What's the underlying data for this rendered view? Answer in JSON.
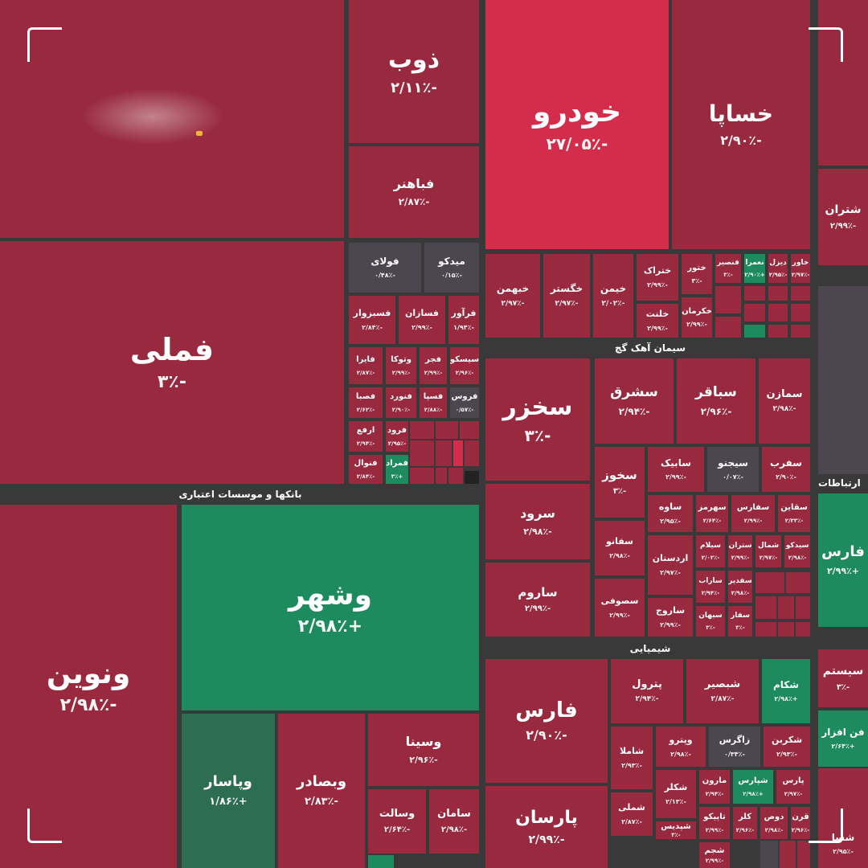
{
  "colors": {
    "background": "#393939",
    "negative": "#98293f",
    "strong_negative": "#d32d4b",
    "positive": "#1d8b5d",
    "dark_positive": "#2d6d52",
    "neutral": "#4c464e"
  },
  "sectors": {
    "banks": "بانکها و موسسات اعتباری",
    "cement": "سیمان آهک گچ",
    "chemical": "شیمیایی",
    "telecom": "ارتباطات"
  },
  "tiles": [
    {
      "name": "ذوب",
      "percent": "-۲/۱۱٪",
      "color": "negative"
    },
    {
      "name": "فباهنر",
      "percent": "-۲/۸۷٪",
      "color": "negative"
    },
    {
      "name": "خودرو",
      "percent": "-۲۷/۰۵٪",
      "color": "strong_negative"
    },
    {
      "name": "خساپا",
      "percent": "-۲/۹۰٪",
      "color": "negative"
    },
    {
      "name": "فملی",
      "percent": "-۳٪",
      "color": "negative"
    },
    {
      "name": "ونوین",
      "percent": "-۲/۹۸٪",
      "color": "negative"
    },
    {
      "name": "وشهر",
      "percent": "+۲/۹۸٪",
      "color": "positive"
    },
    {
      "name": "وپاسار",
      "percent": "+۱/۸۶٪",
      "color": "dark_positive"
    },
    {
      "name": "وبصادر",
      "percent": "-۲/۸۳٪",
      "color": "negative"
    },
    {
      "name": "وسینا",
      "percent": "-۲/۹۶٪",
      "color": "negative"
    },
    {
      "name": "وسالت",
      "percent": "-۲/۶۴٪",
      "color": "negative"
    },
    {
      "name": "سامان",
      "percent": "-۲/۹۸٪",
      "color": "negative"
    },
    {
      "name": "فولای",
      "percent": "-۰/۴۸٪",
      "color": "neutral"
    },
    {
      "name": "میدکو",
      "percent": "-۰/۱۵٪",
      "color": "neutral"
    },
    {
      "name": "فسبزوار",
      "percent": "-۲/۸۴٪",
      "color": "negative"
    },
    {
      "name": "فسازان",
      "percent": "-۲/۹۹٪",
      "color": "negative"
    },
    {
      "name": "فرآور",
      "percent": "-۱/۹۴٪",
      "color": "negative"
    },
    {
      "name": "فایرا",
      "percent": "-۲/۸۷٪",
      "color": "negative"
    },
    {
      "name": "وتوکا",
      "percent": "-۲/۹۹٪",
      "color": "negative"
    },
    {
      "name": "فجر",
      "percent": "-۲/۹۹٪",
      "color": "negative"
    },
    {
      "name": "سیسکو",
      "percent": "-۲/۹۶٪",
      "color": "negative"
    },
    {
      "name": "فصبا",
      "percent": "-۲/۶۲٪",
      "color": "negative"
    },
    {
      "name": "فنورد",
      "percent": "-۲/۹۰٪",
      "color": "negative"
    },
    {
      "name": "فسپا",
      "percent": "-۲/۸۸٪",
      "color": "negative"
    },
    {
      "name": "فروس",
      "percent": "-۰/۵۷٪",
      "color": "neutral"
    },
    {
      "name": "ارفع",
      "percent": "-۲/۹۴٪",
      "color": "negative"
    },
    {
      "name": "فرود",
      "percent": "-۲/۹۵٪",
      "color": "negative"
    },
    {
      "name": "فنوال",
      "percent": "-۲/۸۴٪",
      "color": "negative"
    },
    {
      "name": "فمراد",
      "percent": "+۳٪",
      "color": "positive"
    },
    {
      "name": "خبهمن",
      "percent": "-۲/۹۷٪",
      "color": "negative"
    },
    {
      "name": "خگستر",
      "percent": "-۲/۹۷٪",
      "color": "negative"
    },
    {
      "name": "خیمن",
      "percent": "-۲/۰۲٪",
      "color": "negative"
    },
    {
      "name": "ختراک",
      "percent": "-۲/۹۹٪",
      "color": "negative"
    },
    {
      "name": "ختور",
      "percent": "-۳٪",
      "color": "negative"
    },
    {
      "name": "فنصیر",
      "percent": "-۳٪",
      "color": "negative"
    },
    {
      "name": "نعمرا",
      "percent": "+۲/۹۰٪",
      "color": "positive"
    },
    {
      "name": "دیزل",
      "percent": "-۲/۹۵٪",
      "color": "negative"
    },
    {
      "name": "خاور",
      "percent": "-۲/۹۷٪",
      "color": "negative"
    },
    {
      "name": "خلنت",
      "percent": "-۲/۹۹٪",
      "color": "negative"
    },
    {
      "name": "خکرمان",
      "percent": "-۲/۹۹٪",
      "color": "negative"
    },
    {
      "name": "سخزر",
      "percent": "-۳٪",
      "color": "negative"
    },
    {
      "name": "سشرق",
      "percent": "-۲/۹۴٪",
      "color": "negative"
    },
    {
      "name": "سباقر",
      "percent": "-۲/۹۶٪",
      "color": "negative"
    },
    {
      "name": "سمازن",
      "percent": "-۲/۹۸٪",
      "color": "negative"
    },
    {
      "name": "سخوز",
      "percent": "-۳٪",
      "color": "negative"
    },
    {
      "name": "سابیک",
      "percent": "-۲/۹۹٪",
      "color": "negative"
    },
    {
      "name": "سیجنو",
      "percent": "-۰/۰۷٪",
      "color": "neutral"
    },
    {
      "name": "سفرب",
      "percent": "-۲/۹۰٪",
      "color": "negative"
    },
    {
      "name": "سرود",
      "percent": "-۲/۹۸٪",
      "color": "negative"
    },
    {
      "name": "ساوه",
      "percent": "-۲/۹۵٪",
      "color": "negative"
    },
    {
      "name": "سهرمز",
      "percent": "-۲/۶۴٪",
      "color": "negative"
    },
    {
      "name": "سفارس",
      "percent": "-۲/۹۹٪",
      "color": "negative"
    },
    {
      "name": "سقاین",
      "percent": "-۲/۳۳٪",
      "color": "negative"
    },
    {
      "name": "سفانو",
      "percent": "-۲/۹۸٪",
      "color": "negative"
    },
    {
      "name": "سیلام",
      "percent": "-۲/۰۲٪",
      "color": "negative"
    },
    {
      "name": "ستران",
      "percent": "-۲/۹۹٪",
      "color": "negative"
    },
    {
      "name": "شمال",
      "percent": "-۲/۹۷٪",
      "color": "negative"
    },
    {
      "name": "سیدکو",
      "percent": "-۲/۹۸٪",
      "color": "negative"
    },
    {
      "name": "اردستان",
      "percent": "-۲/۹۷٪",
      "color": "negative"
    },
    {
      "name": "ساراب",
      "percent": "-۲/۹۴٪",
      "color": "negative"
    },
    {
      "name": "سفدیر",
      "percent": "-۲/۹۸٪",
      "color": "negative"
    },
    {
      "name": "ساروم",
      "percent": "-۲/۹۹٪",
      "color": "negative"
    },
    {
      "name": "سصوفی",
      "percent": "-۲/۹۹٪",
      "color": "negative"
    },
    {
      "name": "ساروج",
      "percent": "-۲/۹۹٪",
      "color": "negative"
    },
    {
      "name": "سبهان",
      "percent": "-۳٪",
      "color": "negative"
    },
    {
      "name": "سفار",
      "percent": "-۳٪",
      "color": "negative"
    },
    {
      "name": "فارس",
      "percent": "-۲/۹۰٪",
      "color": "negative"
    },
    {
      "name": "پترول",
      "percent": "-۲/۹۴٪",
      "color": "negative"
    },
    {
      "name": "شبصیر",
      "percent": "-۲/۸۷٪",
      "color": "negative"
    },
    {
      "name": "شکام",
      "percent": "+۲/۹۸٪",
      "color": "positive"
    },
    {
      "name": "شاملا",
      "percent": "-۲/۹۳٪",
      "color": "negative"
    },
    {
      "name": "وپترو",
      "percent": "-۲/۹۸٪",
      "color": "negative"
    },
    {
      "name": "زاگرس",
      "percent": "-۰/۳۴٪",
      "color": "neutral"
    },
    {
      "name": "شکربن",
      "percent": "-۲/۹۳٪",
      "color": "negative"
    },
    {
      "name": "شکلر",
      "percent": "-۲/۱۳٪",
      "color": "negative"
    },
    {
      "name": "مارون",
      "percent": "-۲/۹۴٪",
      "color": "negative"
    },
    {
      "name": "شپارس",
      "percent": "+۲/۹۸٪",
      "color": "positive"
    },
    {
      "name": "پارس",
      "percent": "-۲/۹۷٪",
      "color": "negative"
    },
    {
      "name": "شملی",
      "percent": "-۲/۸۷٪",
      "color": "negative"
    },
    {
      "name": "تاپیکو",
      "percent": "-۲/۹۹٪",
      "color": "negative"
    },
    {
      "name": "کلر",
      "percent": "-۲/۹۶٪",
      "color": "negative"
    },
    {
      "name": "دوص",
      "percent": "-۲/۹۸٪",
      "color": "negative"
    },
    {
      "name": "قرن",
      "percent": "-۲/۹۶٪",
      "color": "negative"
    },
    {
      "name": "پارسان",
      "percent": "-۲/۹۹٪",
      "color": "negative"
    },
    {
      "name": "شپدیس",
      "percent": "-۳٪",
      "color": "negative"
    },
    {
      "name": "شجم",
      "percent": "-۲/۹۹٪",
      "color": "negative"
    },
    {
      "name": "شتران",
      "percent": "-۲/۹۹٪",
      "color": "negative"
    },
    {
      "name": "فارس",
      "percent": "+۲/۹۹٪",
      "color": "positive"
    },
    {
      "name": "سیستم",
      "percent": "-۳٪",
      "color": "negative"
    },
    {
      "name": "فن افزار",
      "percent": "+۲/۶۴٪",
      "color": "positive"
    },
    {
      "name": "شسا",
      "percent": "-۲/۹۵٪",
      "color": "negative"
    }
  ]
}
